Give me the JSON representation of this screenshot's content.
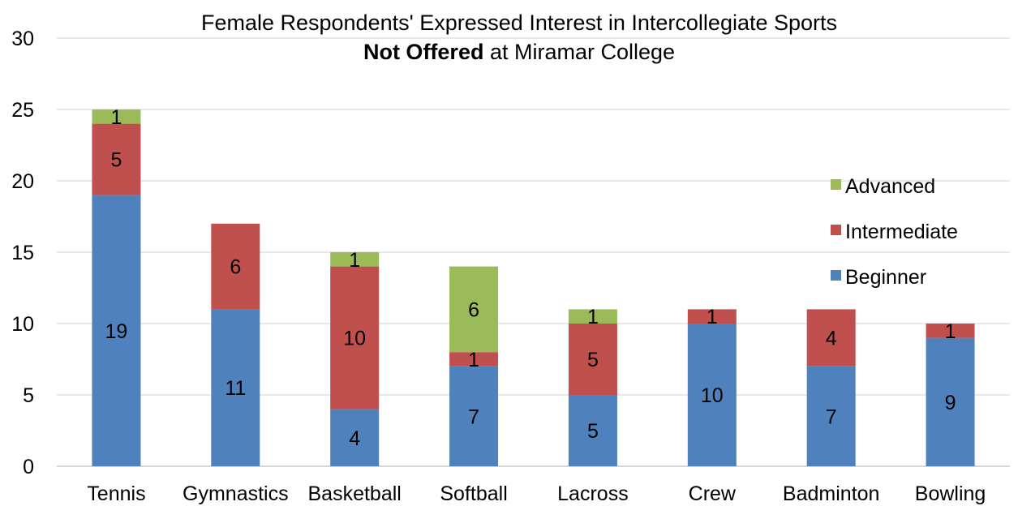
{
  "chart_data": {
    "type": "bar",
    "stacked": true,
    "title_line1": "Female Respondents' Expressed Interest in Intercollegiate Sports",
    "title_line2_bold": "Not Offered",
    "title_line2_rest": " at Miramar College",
    "xlabel": "",
    "ylabel": "",
    "ylim": [
      0,
      30
    ],
    "yticks": [
      "0",
      "5",
      "10",
      "15",
      "20",
      "25",
      "30"
    ],
    "grid": true,
    "legend_position": "right",
    "categories": [
      "Tennis",
      "Gymnastics",
      "Basketball",
      "Softball",
      "Lacross",
      "Crew",
      "Badminton",
      "Bowling"
    ],
    "series": [
      {
        "name": "Beginner",
        "color": "#4f81bd",
        "values": [
          19,
          11,
          4,
          7,
          5,
          10,
          7,
          9
        ]
      },
      {
        "name": "Intermediate",
        "color": "#c0504d",
        "values": [
          5,
          6,
          10,
          1,
          5,
          1,
          4,
          1
        ]
      },
      {
        "name": "Advanced",
        "color": "#9bbb59",
        "values": [
          1,
          0,
          1,
          6,
          1,
          0,
          0,
          0
        ]
      }
    ],
    "legend_order": [
      "Advanced",
      "Intermediate",
      "Beginner"
    ]
  }
}
